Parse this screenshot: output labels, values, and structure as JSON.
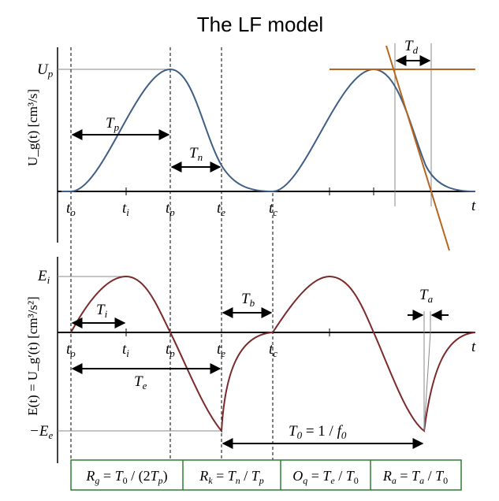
{
  "title": "The LF model",
  "colors": {
    "glottal_flow": "#3f5e85",
    "derivative": "#7a2a2a",
    "tangent": "#b5651d",
    "box_border": "#2e7d32",
    "guide": "#888888"
  },
  "top_panel": {
    "ylabel": "U_g(t) [cm³/s]",
    "amplitude_label": "U_p",
    "time_labels": [
      "t_o",
      "t_i",
      "t_p",
      "t_e",
      "t_c",
      "t"
    ],
    "intervals": {
      "Tp": "T_p",
      "Tn": "T_n",
      "Td": "T_d"
    }
  },
  "bottom_panel": {
    "ylabel": "E(t) = U_g′(t) [cm³/s²]",
    "amplitude_labels": {
      "Ei": "E_i",
      "Ee": "−E_e"
    },
    "time_labels": [
      "t_o",
      "t_i",
      "t_p",
      "t_e",
      "t_c",
      "t"
    ],
    "intervals": {
      "Ti": "T_i",
      "Te": "T_e",
      "Tb": "T_b",
      "Ta": "T_a",
      "T0": "T_0 = 1 / f_0"
    }
  },
  "formulas": [
    "R_g = T_0 / (2T_p)",
    "R_k = T_n / T_p",
    "O_q = T_e / T_0",
    "R_a = T_a / T_0"
  ]
}
